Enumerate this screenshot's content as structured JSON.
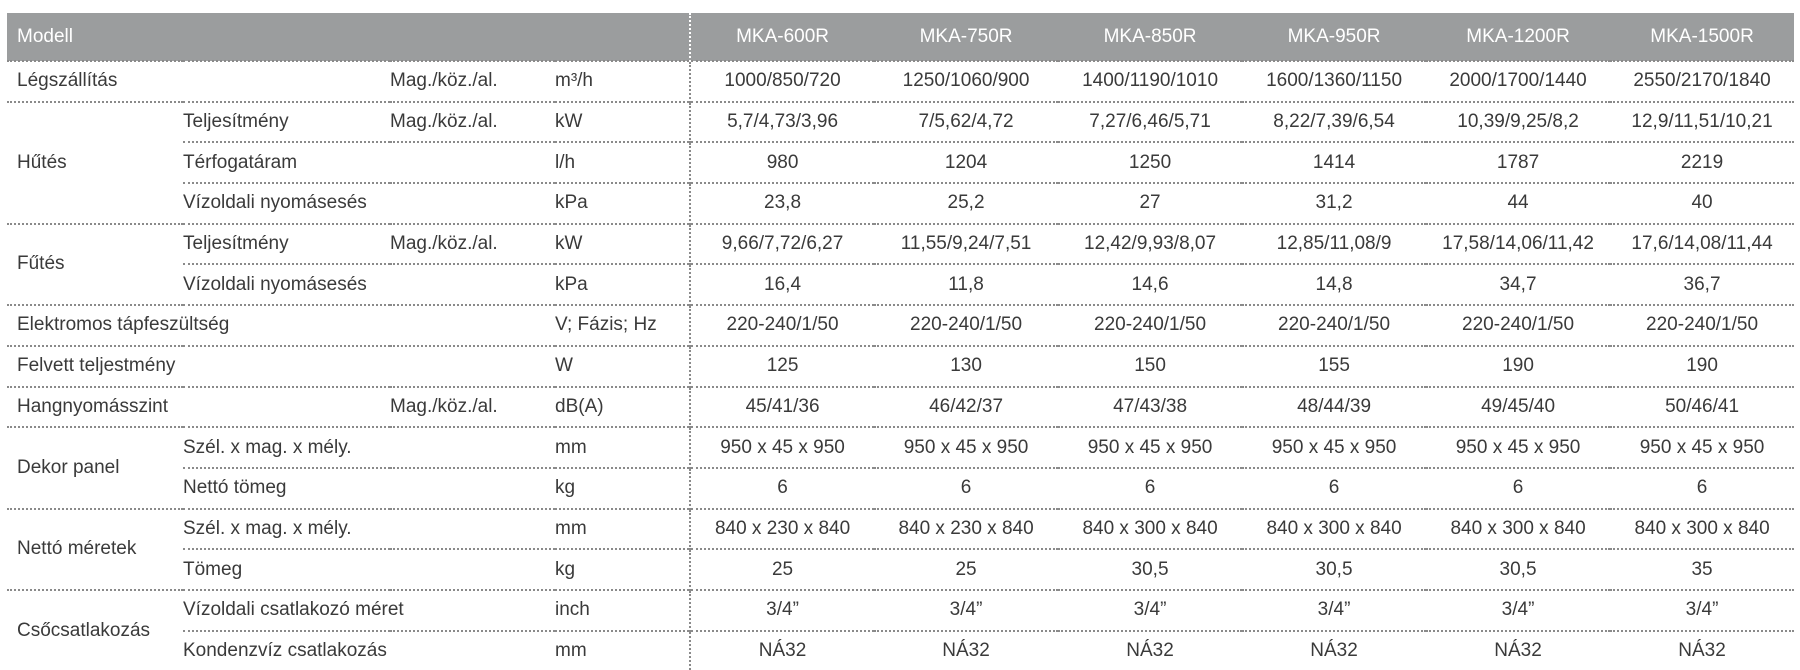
{
  "header": {
    "label": "Modell",
    "models": [
      "MKA-600R",
      "MKA-750R",
      "MKA-850R",
      "MKA-950R",
      "MKA-1200R",
      "MKA-1500R"
    ]
  },
  "groups": [
    {
      "category": "Légszállítás",
      "rows": [
        {
          "sub": "",
          "cond": "Mag./köz./al.",
          "unit": "m³/h",
          "values": [
            "1000/850/720",
            "1250/1060/900",
            "1400/1190/1010",
            "1600/1360/1150",
            "2000/1700/1440",
            "2550/2170/1840"
          ]
        }
      ]
    },
    {
      "category": "Hűtés",
      "rows": [
        {
          "sub": "Teljesítmény",
          "cond": "Mag./köz./al.",
          "unit": "kW",
          "values": [
            "5,7/4,73/3,96",
            "7/5,62/4,72",
            "7,27/6,46/5,71",
            "8,22/7,39/6,54",
            "10,39/9,25/8,2",
            "12,9/11,51/10,21"
          ]
        },
        {
          "sub": "Térfogatáram",
          "cond": "",
          "unit": "l/h",
          "values": [
            "980",
            "1204",
            "1250",
            "1414",
            "1787",
            "2219"
          ]
        },
        {
          "sub": "Vízoldali nyomásesés",
          "cond": "",
          "unit": "kPa",
          "values": [
            "23,8",
            "25,2",
            "27",
            "31,2",
            "44",
            "40"
          ]
        }
      ]
    },
    {
      "category": "Fűtés",
      "rows": [
        {
          "sub": "Teljesítmény",
          "cond": "Mag./köz./al.",
          "unit": "kW",
          "values": [
            "9,66/7,72/6,27",
            "11,55/9,24/7,51",
            "12,42/9,93/8,07",
            "12,85/11,08/9",
            "17,58/14,06/11,42",
            "17,6/14,08/11,44"
          ]
        },
        {
          "sub": "Vízoldali nyomásesés",
          "cond": "",
          "unit": "kPa",
          "values": [
            "16,4",
            "11,8",
            "14,6",
            "14,8",
            "34,7",
            "36,7"
          ]
        }
      ]
    },
    {
      "category": "Elektromos tápfeszültség",
      "rows": [
        {
          "sub": "",
          "cond": "",
          "unit": "V; Fázis; Hz",
          "values": [
            "220-240/1/50",
            "220-240/1/50",
            "220-240/1/50",
            "220-240/1/50",
            "220-240/1/50",
            "220-240/1/50"
          ]
        }
      ]
    },
    {
      "category": "Felvett teljestmény",
      "rows": [
        {
          "sub": "",
          "cond": "",
          "unit": "W",
          "values": [
            "125",
            "130",
            "150",
            "155",
            "190",
            "190"
          ]
        }
      ]
    },
    {
      "category": "Hangnyomásszint",
      "rows": [
        {
          "sub": "",
          "cond": "Mag./köz./al.",
          "unit": "dB(A)",
          "values": [
            "45/41/36",
            "46/42/37",
            "47/43/38",
            "48/44/39",
            "49/45/40",
            "50/46/41"
          ]
        }
      ]
    },
    {
      "category": "Dekor panel",
      "rows": [
        {
          "sub": "Szél. x mag. x mély.",
          "cond": "",
          "unit": "mm",
          "values": [
            "950 x 45 x 950",
            "950 x 45 x 950",
            "950 x 45 x 950",
            "950 x 45 x 950",
            "950 x 45 x 950",
            "950 x 45 x 950"
          ]
        },
        {
          "sub": "Nettó tömeg",
          "cond": "",
          "unit": "kg",
          "values": [
            "6",
            "6",
            "6",
            "6",
            "6",
            "6"
          ]
        }
      ]
    },
    {
      "category": "Nettó méretek",
      "rows": [
        {
          "sub": "Szél. x mag. x mély.",
          "cond": "",
          "unit": "mm",
          "values": [
            "840 x 230 x 840",
            "840 x 230 x 840",
            "840 x 300 x 840",
            "840 x 300 x 840",
            "840 x 300 x 840",
            "840 x 300 x 840"
          ]
        },
        {
          "sub": "Tömeg",
          "cond": "",
          "unit": "kg",
          "values": [
            "25",
            "25",
            "30,5",
            "30,5",
            "30,5",
            "35"
          ]
        }
      ]
    },
    {
      "category": "Csőcsatlakozás",
      "rows": [
        {
          "sub": "Vízoldali csatlakozó méret",
          "cond": "",
          "unit": "inch",
          "values": [
            "3/4”",
            "3/4”",
            "3/4”",
            "3/4”",
            "3/4”",
            "3/4”"
          ]
        },
        {
          "sub": "Kondenzvíz csatlakozás",
          "cond": "",
          "unit": "mm",
          "values": [
            "NÁ32",
            "NÁ32",
            "NÁ32",
            "NÁ32",
            "NÁ32",
            "NÁ32"
          ]
        }
      ]
    }
  ]
}
